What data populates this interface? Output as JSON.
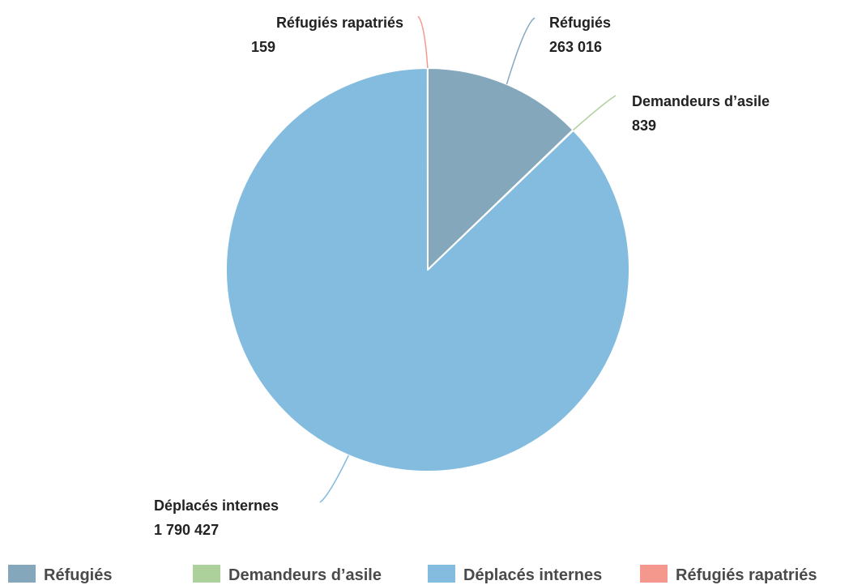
{
  "chart_data": {
    "type": "pie",
    "categories": [
      "Réfugiés",
      "Demandeurs d’asile",
      "Déplacés internes",
      "Réfugiés rapatriés"
    ],
    "values": [
      263016,
      839,
      1790427,
      159
    ],
    "value_labels": [
      "263 016",
      "839",
      "1 790 427",
      "159"
    ],
    "colors": [
      "#84a7bc",
      "#acd19a",
      "#84bcdf",
      "#f4988e"
    ],
    "title": "",
    "legend_position": "bottom",
    "start_angle": "12 o'clock",
    "direction": "clockwise"
  }
}
